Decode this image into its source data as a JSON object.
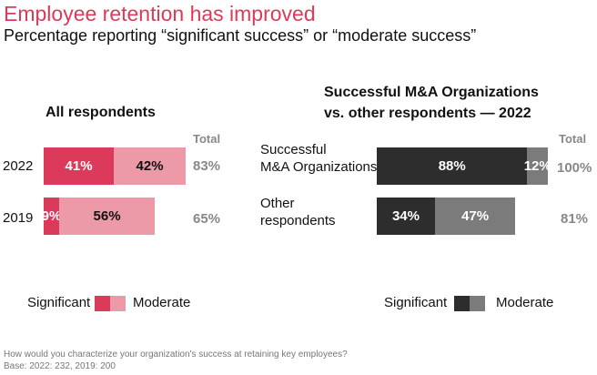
{
  "title": "Employee retention has improved",
  "subtitle": "Percentage reporting “significant success” or “moderate success”",
  "chart_data": [
    {
      "type": "bar",
      "stacked": true,
      "orientation": "horizontal",
      "title": "All respondents",
      "categories": [
        "2022",
        "2019"
      ],
      "series": [
        {
          "name": "Significant",
          "values": [
            41,
            9
          ],
          "labels": [
            "41%",
            "9%"
          ],
          "color": "#dc3a5a",
          "text": "#fff"
        },
        {
          "name": "Moderate",
          "values": [
            42,
            56
          ],
          "labels": [
            "42%",
            "56%"
          ],
          "color": "#ec9aa8",
          "text": "#111"
        }
      ],
      "total_header": "Total",
      "totals": [
        "83%",
        "65%"
      ],
      "legend": "bottom-left"
    },
    {
      "type": "bar",
      "stacked": true,
      "orientation": "horizontal",
      "title": "Successful M&A Organizations vs. other respondents — 2022",
      "title_lines": [
        "Successful M&A Organizations",
        "vs. other respondents — 2022"
      ],
      "categories": [
        "Successful M&A Organizations",
        "Other respondents"
      ],
      "category_lines": [
        [
          "Successful",
          "M&A Organizations"
        ],
        [
          "Other",
          "respondents"
        ]
      ],
      "series": [
        {
          "name": "Significant",
          "values": [
            88,
            34
          ],
          "labels": [
            "88%",
            "34%"
          ],
          "color": "#2d2d2d",
          "text": "#fff"
        },
        {
          "name": "Moderate",
          "values": [
            12,
            47
          ],
          "labels": [
            "12%",
            "47%"
          ],
          "color": "#7b7b7b",
          "text": "#fff"
        }
      ],
      "total_header": "Total",
      "totals": [
        "100%",
        "81%"
      ],
      "legend": "bottom-right"
    }
  ],
  "footnote": [
    "How would you characterize your organization's success at retaining key employees?",
    "Base: 2022: 232, 2019: 200"
  ]
}
